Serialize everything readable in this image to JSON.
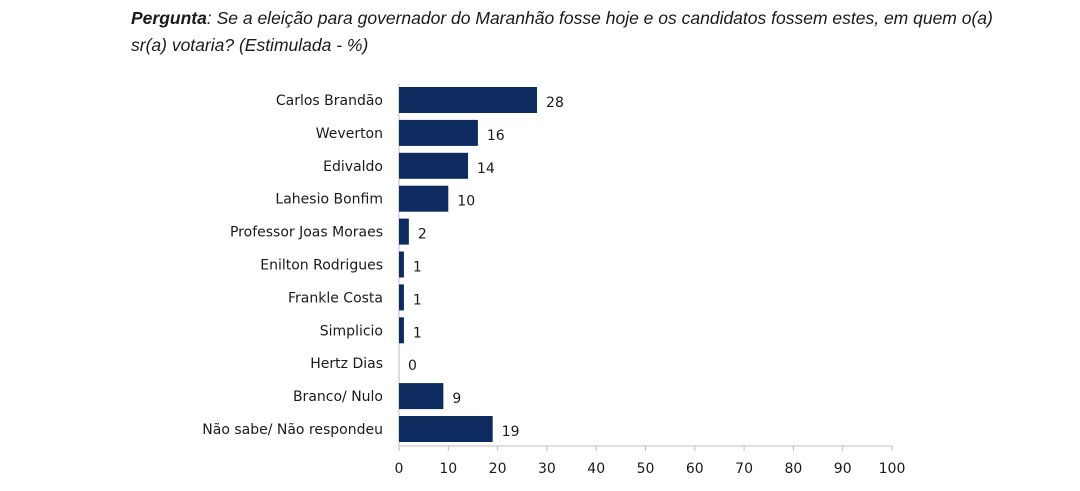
{
  "question": {
    "lead": "Pergunta",
    "text": ": Se a eleição para governador do Maranhão fosse hoje e os candidatos fossem estes, em quem o(a) sr(a) votaria? (Estimulada - %)"
  },
  "chart_data": {
    "type": "bar",
    "orientation": "horizontal",
    "categories": [
      "Carlos Brandão",
      "Weverton",
      "Edivaldo",
      "Lahesio Bonfim",
      "Professor Joas Moraes",
      "Enilton Rodrigues",
      "Frankle Costa",
      "Simplicio",
      "Hertz Dias",
      "Branco/ Nulo",
      "Não sabe/ Não respondeu"
    ],
    "values": [
      28,
      16,
      14,
      10,
      2,
      1,
      1,
      1,
      0,
      9,
      19
    ],
    "xlim": [
      0,
      100
    ],
    "xticks": [
      0,
      10,
      20,
      30,
      40,
      50,
      60,
      70,
      80,
      90,
      100
    ],
    "bar_color": "#0d2b5e",
    "grid": false
  }
}
